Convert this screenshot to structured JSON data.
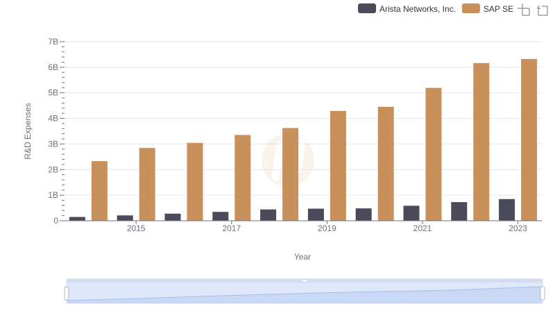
{
  "chart_data": {
    "type": "bar",
    "title": "",
    "xlabel": "Year",
    "ylabel": "R&D Expenses",
    "x": [
      2014,
      2015,
      2016,
      2017,
      2018,
      2019,
      2020,
      2021,
      2022,
      2023
    ],
    "x_tick_labels": [
      "2015",
      "2017",
      "2019",
      "2021",
      "2023"
    ],
    "y_tick_labels": [
      "0",
      "1B",
      "2B",
      "3B",
      "4B",
      "5B",
      "6B",
      "7B"
    ],
    "ylim": [
      0,
      7000000000
    ],
    "grid": true,
    "legend_position": "top-right",
    "series": [
      {
        "name": "Arista Networks, Inc.",
        "color": "#4a4a5a",
        "values": [
          148000000,
          209000000,
          277000000,
          346000000,
          442000000,
          472000000,
          483000000,
          586000000,
          728000000,
          847000000
        ]
      },
      {
        "name": "SAP SE",
        "color": "#c8915c",
        "values": [
          2331000000,
          2845000000,
          3044000000,
          3352000000,
          3624000000,
          4292000000,
          4454000000,
          5194000000,
          6162000000,
          6324000000
        ]
      }
    ]
  },
  "toolbar": {
    "zoom_icon": "zoom-select-icon",
    "reset_icon": "zoom-reset-icon"
  },
  "slider": {
    "handle_icon": "drag-handle-icon"
  }
}
